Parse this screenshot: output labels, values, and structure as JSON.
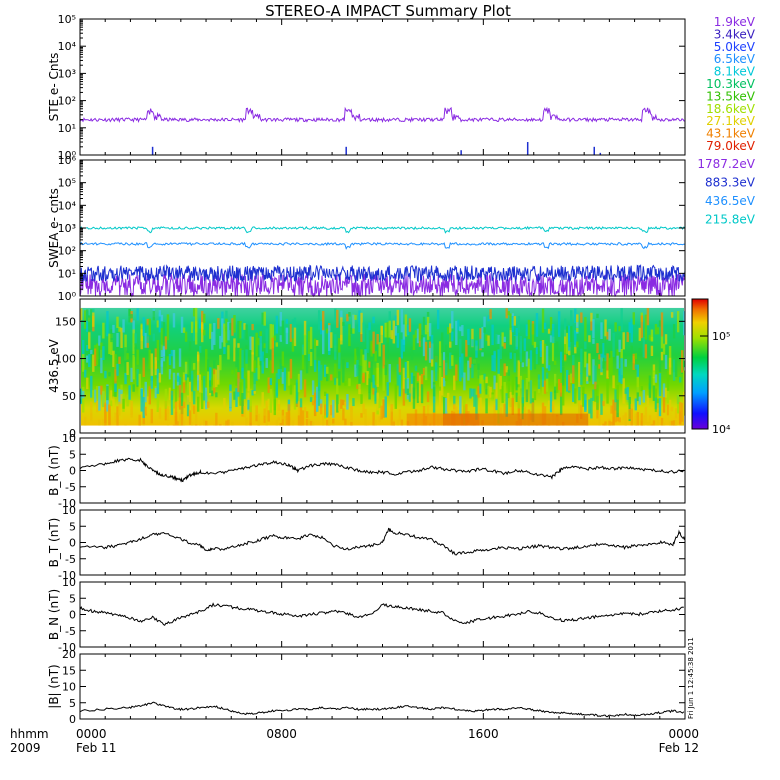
{
  "title": "STEREO-A IMPACT Summary Plot",
  "timestamp": "Fri Jun 1 12:45:38 2011",
  "chart_data": [
    {
      "type": "line",
      "ylabel": "STE e- Cnts",
      "yscale": "log",
      "ylim": [
        1,
        100000
      ],
      "yticks": [
        "10⁰",
        "10¹",
        "10²",
        "10³",
        "10⁴",
        "10⁵"
      ],
      "legend_placement": "right",
      "series": [
        {
          "name": "1.9keV",
          "color": "#8a2be2"
        },
        {
          "name": "3.4keV",
          "color": "#3a20c0"
        },
        {
          "name": "5.0keV",
          "color": "#1e40ff"
        },
        {
          "name": "6.5keV",
          "color": "#1e90ff"
        },
        {
          "name": "8.1keV",
          "color": "#00c8d8"
        },
        {
          "name": "10.3keV",
          "color": "#00c060"
        },
        {
          "name": "13.5keV",
          "color": "#30c000"
        },
        {
          "name": "18.6keV",
          "color": "#a0e000"
        },
        {
          "name": "27.1keV",
          "color": "#e0d000"
        },
        {
          "name": "43.1keV",
          "color": "#f08000"
        },
        {
          "name": "79.0keV",
          "color": "#e02000"
        }
      ],
      "baseline_counts": 20,
      "burst_peak_counts": 50
    },
    {
      "type": "line",
      "ylabel": "SWEA e- cnts",
      "yscale": "log",
      "ylim": [
        1,
        1000000
      ],
      "yticks": [
        "10⁰",
        "10¹",
        "10²",
        "10³",
        "10⁴",
        "10⁵",
        "10⁶"
      ],
      "legend_placement": "right",
      "series": [
        {
          "name": "1787.2eV",
          "color": "#8a2be2",
          "level": 3
        },
        {
          "name": "883.3eV",
          "color": "#1e30d0",
          "level": 10
        },
        {
          "name": "436.5eV",
          "color": "#1e90ff",
          "level": 200
        },
        {
          "name": "215.8eV",
          "color": "#00c8c8",
          "level": 1000
        }
      ]
    },
    {
      "type": "heatmap",
      "ylabel": "436.5 eV",
      "ylim": [
        0,
        180
      ],
      "yticks": [
        "0",
        "50",
        "100",
        "150"
      ],
      "colorbar_ticks": [
        "10⁴",
        "10⁵"
      ],
      "colorbar_range": [
        10000,
        250000
      ]
    },
    {
      "type": "line",
      "ylabel": "B_R (nT)",
      "ylim": [
        -10,
        10
      ],
      "yticks": [
        "10",
        "5",
        "0",
        "-5",
        "-10"
      ],
      "x": [
        0,
        4,
        6,
        8,
        10,
        11,
        12,
        13,
        14,
        15,
        16,
        17,
        18,
        19,
        20,
        22,
        24,
        26,
        28,
        30,
        32,
        34,
        35,
        36,
        38,
        40,
        42,
        44,
        46,
        48,
        50,
        52,
        54,
        56,
        58,
        60,
        62,
        64,
        66,
        68,
        70,
        72,
        74,
        76,
        78,
        79,
        80,
        82,
        84,
        86,
        88,
        90,
        92,
        94,
        96,
        98,
        100
      ],
      "y": [
        1,
        2,
        3,
        3.5,
        3.2,
        1.5,
        0,
        -1,
        -1.5,
        -2,
        -2.5,
        -3,
        -1.5,
        -1,
        -0.5,
        -1,
        -0.5,
        0.5,
        1,
        2,
        2.5,
        2,
        1,
        0,
        1.5,
        2,
        2,
        1,
        0,
        -0.5,
        -0.5,
        -1,
        -0.5,
        0,
        1,
        0.5,
        0,
        -0.5,
        0.5,
        0,
        -1,
        0,
        -0.5,
        -1.5,
        -2,
        -0.5,
        1,
        1,
        0.5,
        1,
        0.5,
        1,
        0.5,
        0,
        0,
        -0.5,
        0
      ]
    },
    {
      "type": "line",
      "ylabel": "B_T (nT)",
      "ylim": [
        -10,
        10
      ],
      "yticks": [
        "10",
        "5",
        "0",
        "-5",
        "-10"
      ],
      "x": [
        0,
        4,
        6,
        8,
        10,
        12,
        14,
        16,
        18,
        20,
        21,
        22,
        24,
        26,
        28,
        30,
        32,
        34,
        36,
        38,
        40,
        42,
        44,
        46,
        48,
        50,
        51,
        52,
        54,
        56,
        58,
        60,
        62,
        64,
        66,
        68,
        70,
        72,
        74,
        76,
        78,
        80,
        82,
        84,
        86,
        88,
        90,
        92,
        94,
        96,
        98,
        99,
        100
      ],
      "y": [
        -1,
        -1.5,
        -1,
        0,
        1,
        2.5,
        3,
        1.5,
        0,
        -1,
        -2.5,
        -2,
        -2,
        -1,
        0,
        1,
        2,
        1.5,
        1,
        2.5,
        1.5,
        -1,
        -2,
        -1.5,
        -1,
        0,
        4,
        3,
        2.5,
        1.5,
        1,
        -1,
        -3.5,
        -3,
        -2.5,
        -2,
        -1.5,
        -2,
        -1.5,
        -1,
        -1.5,
        -2,
        -1.5,
        -1,
        -0.5,
        -1,
        -1.5,
        -1,
        -0.5,
        0,
        -0.5,
        3,
        1
      ]
    },
    {
      "type": "line",
      "ylabel": "B_N (nT)",
      "ylim": [
        -10,
        10
      ],
      "yticks": [
        "10",
        "5",
        "0",
        "-5",
        "-10"
      ],
      "x": [
        0,
        2,
        4,
        6,
        8,
        10,
        12,
        14,
        16,
        18,
        20,
        22,
        24,
        26,
        28,
        30,
        32,
        34,
        36,
        38,
        40,
        42,
        44,
        46,
        48,
        50,
        52,
        54,
        56,
        58,
        60,
        62,
        64,
        66,
        68,
        70,
        72,
        74,
        76,
        78,
        80,
        82,
        84,
        86,
        88,
        90,
        92,
        94,
        96,
        98,
        100
      ],
      "y": [
        2,
        1,
        0.5,
        0,
        -1,
        -2,
        -1,
        -3,
        -1.5,
        0,
        1,
        3,
        2.5,
        2,
        1.5,
        1,
        0.5,
        0,
        -0.5,
        0,
        0.5,
        1,
        0.5,
        -1,
        0,
        3,
        2.5,
        2,
        1.5,
        1,
        0.5,
        -2,
        -2.5,
        -1.5,
        -1,
        -0.5,
        0,
        1,
        0.5,
        -1,
        -2,
        -1.5,
        -1,
        -0.5,
        0,
        0.5,
        0,
        0.5,
        1,
        1.5,
        2
      ]
    },
    {
      "type": "line",
      "ylabel": "|B| (nT)",
      "ylim": [
        0,
        20
      ],
      "yticks": [
        "20",
        "15",
        "10",
        "5",
        "0"
      ],
      "x": [
        0,
        4,
        8,
        10,
        12,
        14,
        16,
        18,
        20,
        22,
        24,
        26,
        28,
        30,
        32,
        34,
        36,
        38,
        40,
        42,
        44,
        46,
        48,
        50,
        52,
        54,
        56,
        58,
        60,
        62,
        64,
        66,
        68,
        70,
        72,
        74,
        76,
        78,
        80,
        82,
        84,
        86,
        88,
        90,
        92,
        94,
        96,
        98,
        100
      ],
      "y": [
        2.5,
        3,
        3.5,
        4,
        5,
        4,
        3,
        3,
        3.5,
        4,
        3,
        2,
        1.5,
        2,
        2.5,
        2.5,
        3,
        3,
        3.5,
        3,
        3.5,
        3,
        3,
        3,
        3.5,
        4,
        3.5,
        3,
        3.5,
        3,
        2.5,
        2.5,
        3,
        3,
        3.5,
        3,
        2.5,
        2,
        2,
        1.5,
        1.5,
        1,
        1,
        1.5,
        1,
        1.5,
        2,
        2.5,
        2
      ]
    }
  ],
  "xaxis": {
    "tick_labels": [
      "0000",
      "0800",
      "1600",
      "0000"
    ],
    "date_labels": [
      "Feb 11",
      "",
      "",
      "Feb 12"
    ],
    "left_label_top": "hhmm",
    "left_label_bottom": "2009"
  }
}
